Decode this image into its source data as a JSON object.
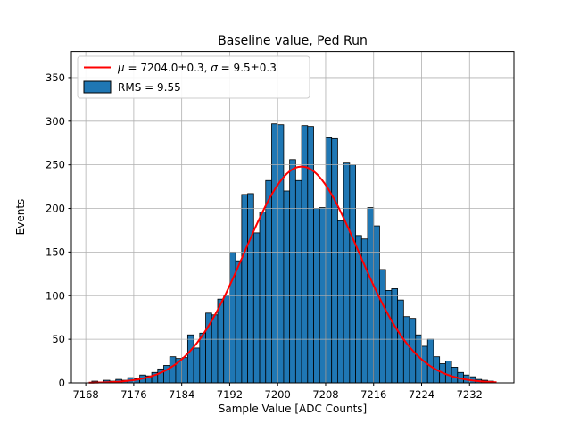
{
  "chart_data": {
    "type": "bar",
    "subtype": "histogram",
    "title": "Baseline value, Ped Run",
    "xlabel": "Sample Value [ADC Counts]",
    "ylabel": "Events",
    "grid": true,
    "legend_position": "upper left",
    "legend": {
      "fit_label": "μ = 7204.0±0.3, σ = 9.5±0.3",
      "hist_label": "RMS = 9.55"
    },
    "xlim": [
      7165.6,
      7239.4
    ],
    "ylim": [
      0,
      380
    ],
    "x_ticks": [
      7168,
      7176,
      7184,
      7192,
      7200,
      7208,
      7216,
      7224,
      7232
    ],
    "y_ticks": [
      0,
      50,
      100,
      150,
      200,
      250,
      300,
      350
    ],
    "bin_start": 7169,
    "bin_width": 1,
    "values": [
      2,
      1,
      3,
      2,
      4,
      3,
      6,
      5,
      9,
      8,
      12,
      16,
      20,
      30,
      28,
      29,
      55,
      40,
      57,
      80,
      78,
      96,
      100,
      150,
      140,
      216,
      217,
      172,
      196,
      232,
      297,
      296,
      220,
      256,
      232,
      295,
      294,
      200,
      201,
      281,
      280,
      186,
      252,
      250,
      169,
      165,
      201,
      180,
      130,
      106,
      108,
      95,
      76,
      74,
      55,
      42,
      50,
      30,
      22,
      25,
      18,
      12,
      9,
      7,
      4,
      3,
      2
    ],
    "fit": {
      "mu": 7204.0,
      "mu_err": 0.3,
      "sigma": 9.5,
      "sigma_err": 0.3,
      "amplitude": 248,
      "x_min": 7168.5,
      "x_max": 7236.5
    },
    "rms": 9.55,
    "colors": {
      "bar": "#1f77b4",
      "bar_edge": "#000000",
      "fit": "#ff0000",
      "grid": "#b0b0b0",
      "spine": "#000000",
      "legend_edge": "#cccccc",
      "background": "#ffffff"
    }
  }
}
